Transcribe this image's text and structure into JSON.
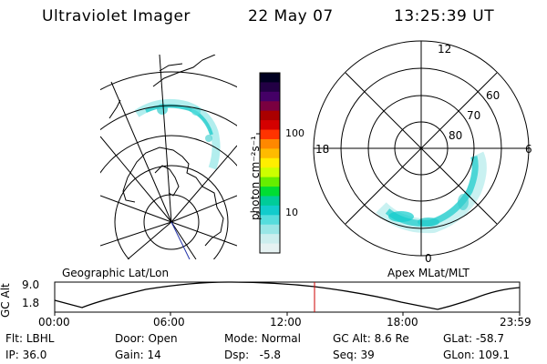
{
  "header": {
    "instrument": "Ultraviolet Imager",
    "date": "22 May 07",
    "time": "13:25:39 UT"
  },
  "colorbar": {
    "unit_label": "photon cm⁻²s⁻¹",
    "tick_labels": [
      "100",
      "10"
    ],
    "colors": [
      "#000020",
      "#220044",
      "#440066",
      "#7a0040",
      "#aa0000",
      "#d40000",
      "#ff3300",
      "#ff8800",
      "#ffbb00",
      "#ffee00",
      "#ccff00",
      "#66ee00",
      "#00dd33",
      "#00cc99",
      "#11cccc",
      "#55dddd",
      "#99e6e6",
      "#cceeee",
      "#e6f2f2"
    ]
  },
  "geo_panel": {
    "label": "Geographic Lat/Lon"
  },
  "polar_panel": {
    "label": "Apex MLat/MLT",
    "mlt_labels": {
      "top": "12",
      "bottom": "0",
      "left": "18",
      "right": "6"
    },
    "mlat_labels": [
      "60",
      "70",
      "80"
    ]
  },
  "altitude_plot": {
    "ylabel": "GC Alt",
    "y_ticks": [
      "9.0",
      "1.8"
    ],
    "x_ticks": [
      "00:00",
      "06:00",
      "12:00",
      "18:00",
      "23:59"
    ],
    "marker_color": "#cc0000"
  },
  "status": {
    "row1": [
      {
        "key": "Flt:",
        "value": "LBHL"
      },
      {
        "key": "Door:",
        "value": "Open"
      },
      {
        "key": "Mode:",
        "value": "Normal"
      },
      {
        "key": "GC Alt:",
        "value": "8.6 Re"
      },
      {
        "key": "GLat:",
        "value": "-58.7"
      }
    ],
    "row2": [
      {
        "key": "IP:",
        "value": "36.0"
      },
      {
        "key": "Gain:",
        "value": "14"
      },
      {
        "key": "Dsp:",
        "value": "  -5.8"
      },
      {
        "key": "Seq:",
        "value": "39"
      },
      {
        "key": "GLon:",
        "value": "109.1"
      }
    ]
  }
}
